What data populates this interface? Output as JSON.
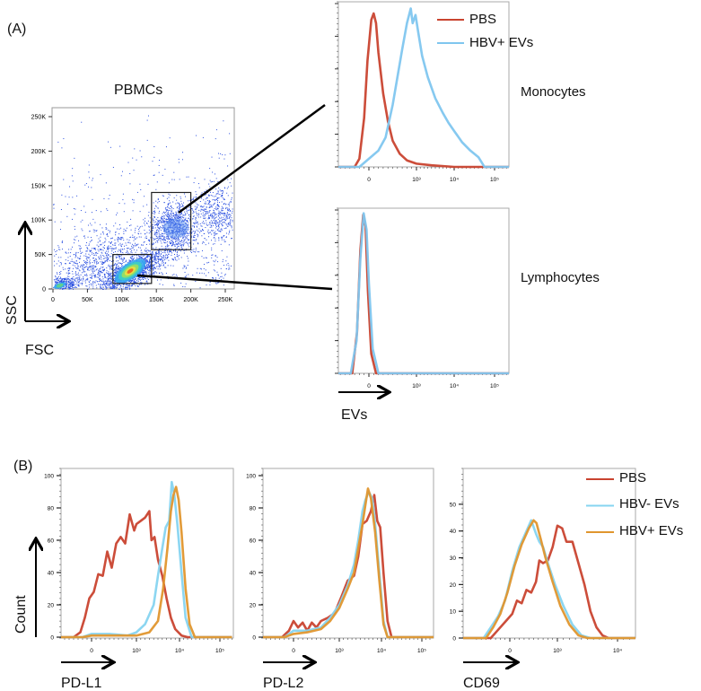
{
  "panel_labels": {
    "a": "(A)",
    "b": "(B)"
  },
  "colors": {
    "pbs": "#c9432f",
    "hbv_neg": "#86d4f0",
    "hbv_pos_mono": "#7fc6ef",
    "hbv_pos": "#e0962e",
    "dots": "#2a4fe0"
  },
  "icons": {
    "axis_arrow": "arrow-icon"
  },
  "chart_data": [
    {
      "id": "pbmc",
      "type": "scatter",
      "title": "PBMCs",
      "xlabel": "FSC",
      "ylabel": "SSC",
      "xlim": [
        0,
        262000
      ],
      "ylim": [
        0,
        262000
      ],
      "xticks": [
        {
          "v": 0,
          "label": "0"
        },
        {
          "v": 50000,
          "label": "50K"
        },
        {
          "v": 100000,
          "label": "100K"
        },
        {
          "v": 150000,
          "label": "150K"
        },
        {
          "v": 200000,
          "label": "200K"
        },
        {
          "v": 250000,
          "label": "250K"
        }
      ],
      "yticks": [
        {
          "v": 0,
          "label": "0"
        },
        {
          "v": 50000,
          "label": "50K"
        },
        {
          "v": 100000,
          "label": "100K"
        },
        {
          "v": 150000,
          "label": "150K"
        },
        {
          "v": 200000,
          "label": "200K"
        },
        {
          "v": 250000,
          "label": "250K"
        }
      ],
      "gates": [
        {
          "name": "Monocytes",
          "fsc": [
            143000,
            200000
          ],
          "ssc": [
            57000,
            140000
          ]
        },
        {
          "name": "Lymphocytes",
          "fsc": [
            87000,
            143000
          ],
          "ssc": [
            8000,
            50000
          ]
        }
      ]
    },
    {
      "id": "monocytes",
      "type": "line",
      "title": "Monocytes",
      "xlabel": "",
      "ylim": [
        0,
        100
      ],
      "xticks": [
        {
          "v": 2,
          "label": "0"
        },
        {
          "v": 3,
          "label": "10³"
        },
        {
          "v": 4,
          "label": "10⁴"
        },
        {
          "v": 5,
          "label": "10⁵"
        }
      ],
      "yticks": [],
      "legend": "top-right",
      "series": [
        {
          "name": "PBS",
          "color": "#c9432f",
          "x": [
            1.2,
            1.7,
            1.8,
            1.9,
            1.97,
            2.05,
            2.1,
            2.15,
            2.2,
            2.3,
            2.4,
            2.5,
            2.65,
            2.8,
            3.0,
            3.4,
            4.0,
            5.4
          ],
          "y": [
            0,
            0,
            5,
            30,
            65,
            90,
            94,
            88,
            70,
            45,
            28,
            16,
            8,
            4,
            2,
            1,
            0,
            0
          ]
        },
        {
          "name": "HBV+ EVs",
          "color": "#7fc6ef",
          "x": [
            1.2,
            1.8,
            2.0,
            2.2,
            2.35,
            2.5,
            2.6,
            2.7,
            2.8,
            2.88,
            2.92,
            2.98,
            3.05,
            3.15,
            3.3,
            3.5,
            3.7,
            3.85,
            4.0,
            4.2,
            4.4,
            4.6,
            4.75,
            5.4
          ],
          "y": [
            0,
            0,
            5,
            10,
            18,
            38,
            55,
            72,
            88,
            97,
            88,
            93,
            82,
            68,
            55,
            42,
            33,
            27,
            22,
            15,
            10,
            6,
            0,
            0
          ]
        }
      ]
    },
    {
      "id": "lymphocytes",
      "type": "line",
      "title": "Lymphocytes",
      "xlabel": "EVs",
      "ylim": [
        0,
        100
      ],
      "xticks": [
        {
          "v": 2,
          "label": "0"
        },
        {
          "v": 3,
          "label": "10³"
        },
        {
          "v": 4,
          "label": "10⁴"
        },
        {
          "v": 5,
          "label": "10⁵"
        }
      ],
      "yticks": [],
      "series": [
        {
          "name": "PBS",
          "color": "#c9432f",
          "x": [
            1.2,
            1.65,
            1.75,
            1.82,
            1.88,
            1.93,
            1.98,
            2.05,
            2.15,
            5.4
          ],
          "y": [
            0,
            0,
            25,
            75,
            97,
            90,
            50,
            12,
            0,
            0
          ]
        },
        {
          "name": "HBV+ EVs",
          "color": "#7fc6ef",
          "x": [
            1.2,
            1.62,
            1.74,
            1.82,
            1.89,
            1.95,
            2.0,
            2.08,
            2.2,
            5.4
          ],
          "y": [
            0,
            0,
            20,
            70,
            98,
            88,
            55,
            15,
            0,
            0
          ]
        }
      ]
    },
    {
      "id": "pdl1",
      "type": "line",
      "title": "",
      "xlabel": "PD-L1",
      "ylabel": "Count",
      "ylim": [
        0,
        100
      ],
      "xticks": [
        {
          "v": 2,
          "label": "0"
        },
        {
          "v": 3,
          "label": "10³"
        },
        {
          "v": 4,
          "label": "10⁴"
        },
        {
          "v": 5,
          "label": "10⁵"
        }
      ],
      "yticks": [
        {
          "v": 0,
          "label": "0"
        },
        {
          "v": 20,
          "label": "20"
        },
        {
          "v": 40,
          "label": "40"
        },
        {
          "v": 60,
          "label": "60"
        },
        {
          "v": 80,
          "label": "80"
        },
        {
          "v": 100,
          "label": "100"
        }
      ],
      "series": [
        {
          "name": "PBS",
          "color": "#c9432f",
          "x": [
            1.3,
            1.6,
            1.75,
            1.85,
            1.95,
            2.05,
            2.15,
            2.25,
            2.35,
            2.45,
            2.55,
            2.65,
            2.75,
            2.85,
            2.95,
            3.0,
            3.1,
            3.2,
            3.3,
            3.35,
            3.42,
            3.5,
            3.6,
            3.7,
            3.8,
            3.9,
            4.05,
            4.2,
            5.3
          ],
          "y": [
            0,
            0,
            3,
            12,
            24,
            28,
            39,
            38,
            53,
            43,
            58,
            62,
            58,
            76,
            66,
            70,
            72,
            74,
            78,
            60,
            62,
            48,
            38,
            24,
            12,
            5,
            1,
            0,
            0
          ]
        },
        {
          "name": "HBV- EVs",
          "color": "#86d4f0",
          "x": [
            1.3,
            1.8,
            2.0,
            2.4,
            2.8,
            3.0,
            3.2,
            3.4,
            3.5,
            3.6,
            3.68,
            3.76,
            3.82,
            3.88,
            3.95,
            4.05,
            4.15,
            4.3,
            5.3
          ],
          "y": [
            0,
            0,
            2,
            2,
            1,
            3,
            8,
            20,
            38,
            55,
            68,
            72,
            96,
            88,
            70,
            40,
            12,
            0,
            0
          ]
        },
        {
          "name": "HBV+ EVs",
          "color": "#e0962e",
          "x": [
            1.3,
            1.8,
            2.0,
            2.5,
            3.0,
            3.3,
            3.5,
            3.62,
            3.72,
            3.8,
            3.86,
            3.92,
            3.98,
            4.05,
            4.15,
            4.25,
            4.38,
            5.3
          ],
          "y": [
            0,
            0,
            1,
            1,
            1,
            3,
            10,
            30,
            55,
            78,
            88,
            93,
            85,
            65,
            30,
            8,
            0,
            0
          ]
        }
      ]
    },
    {
      "id": "pdl2",
      "type": "line",
      "title": "",
      "xlabel": "PD-L2",
      "ylim": [
        0,
        100
      ],
      "xticks": [
        {
          "v": 2,
          "label": "0"
        },
        {
          "v": 3,
          "label": "10³"
        },
        {
          "v": 4,
          "label": "10⁴"
        },
        {
          "v": 5,
          "label": "10⁵"
        }
      ],
      "yticks": [
        {
          "v": 0,
          "label": "0"
        },
        {
          "v": 20,
          "label": "20"
        },
        {
          "v": 40,
          "label": "40"
        },
        {
          "v": 60,
          "label": "60"
        },
        {
          "v": 80,
          "label": "80"
        },
        {
          "v": 100,
          "label": "100"
        }
      ],
      "series": [
        {
          "name": "PBS",
          "color": "#c9432f",
          "x": [
            1.3,
            1.75,
            1.9,
            2.0,
            2.1,
            2.2,
            2.3,
            2.4,
            2.5,
            2.6,
            2.75,
            2.9,
            3.05,
            3.2,
            3.35,
            3.45,
            3.55,
            3.65,
            3.75,
            3.83,
            3.9,
            3.97,
            4.05,
            4.15,
            4.25,
            5.3
          ],
          "y": [
            0,
            0,
            4,
            10,
            6,
            9,
            4,
            9,
            6,
            10,
            12,
            15,
            25,
            35,
            38,
            50,
            70,
            72,
            78,
            88,
            72,
            68,
            40,
            10,
            0,
            0
          ]
        },
        {
          "name": "HBV- EVs",
          "color": "#86d4f0",
          "x": [
            1.3,
            1.8,
            2.0,
            2.3,
            2.6,
            2.8,
            3.0,
            3.2,
            3.35,
            3.45,
            3.55,
            3.62,
            3.7,
            3.78,
            3.85,
            3.95,
            4.05,
            4.15,
            5.3
          ],
          "y": [
            0,
            0,
            4,
            4,
            6,
            12,
            20,
            32,
            45,
            60,
            78,
            85,
            90,
            86,
            70,
            40,
            10,
            0,
            0
          ]
        },
        {
          "name": "HBV+ EVs",
          "color": "#e0962e",
          "x": [
            1.3,
            1.8,
            2.0,
            2.3,
            2.6,
            2.8,
            3.0,
            3.2,
            3.35,
            3.45,
            3.55,
            3.62,
            3.68,
            3.75,
            3.85,
            3.95,
            4.05,
            4.15,
            5.3
          ],
          "y": [
            0,
            0,
            2,
            3,
            5,
            10,
            18,
            30,
            40,
            55,
            70,
            82,
            92,
            86,
            65,
            35,
            8,
            0,
            0
          ]
        }
      ]
    },
    {
      "id": "cd69",
      "type": "line",
      "title": "",
      "xlabel": "CD69",
      "ylim": [
        0,
        55
      ],
      "legend": "top-right",
      "xticks": [
        {
          "v": 2,
          "label": "0"
        },
        {
          "v": 3,
          "label": "10³"
        },
        {
          "v": 4,
          "label": "10⁴"
        }
      ],
      "yticks": [
        {
          "v": 0,
          "label": "0"
        },
        {
          "v": 10,
          "label": "10"
        },
        {
          "v": 20,
          "label": "20"
        },
        {
          "v": 30,
          "label": "30"
        },
        {
          "v": 40,
          "label": "40"
        },
        {
          "v": 50,
          "label": "50"
        }
      ],
      "series": [
        {
          "name": "PBS",
          "color": "#c9432f",
          "x": [
            1.0,
            1.6,
            1.75,
            1.9,
            2.05,
            2.15,
            2.25,
            2.35,
            2.45,
            2.55,
            2.62,
            2.7,
            2.8,
            2.9,
            3.0,
            3.08,
            3.15,
            3.25,
            3.35,
            3.45,
            3.55,
            3.65,
            3.75,
            3.85,
            4.3
          ],
          "y": [
            0,
            0,
            3,
            6,
            9,
            14,
            13,
            18,
            17,
            21,
            29,
            28,
            29,
            34,
            42,
            41,
            36,
            36,
            28,
            20,
            10,
            4,
            1,
            0,
            0
          ]
        },
        {
          "name": "HBV- EVs",
          "color": "#86d4f0",
          "x": [
            1.0,
            1.45,
            1.6,
            1.75,
            1.9,
            2.05,
            2.2,
            2.35,
            2.45,
            2.55,
            2.62,
            2.7,
            2.8,
            2.95,
            3.1,
            3.25,
            3.4,
            3.55,
            4.3
          ],
          "y": [
            0,
            0,
            4,
            8,
            14,
            25,
            34,
            40,
            44,
            39,
            36,
            34,
            28,
            20,
            12,
            5,
            1,
            0,
            0
          ]
        },
        {
          "name": "HBV+ EVs",
          "color": "#e0962e",
          "x": [
            1.0,
            1.5,
            1.65,
            1.8,
            1.95,
            2.1,
            2.25,
            2.4,
            2.5,
            2.56,
            2.65,
            2.75,
            2.9,
            3.05,
            3.2,
            3.35,
            3.5,
            4.3
          ],
          "y": [
            0,
            0,
            4,
            9,
            17,
            27,
            35,
            41,
            44,
            43,
            37,
            30,
            21,
            12,
            5,
            1,
            0,
            0
          ]
        }
      ]
    }
  ],
  "legend_b": [
    {
      "label": "PBS",
      "color": "#c9432f"
    },
    {
      "label": "HBV- EVs",
      "color": "#86d4f0"
    },
    {
      "label": "HBV+  EVs",
      "color": "#e0962e"
    }
  ]
}
